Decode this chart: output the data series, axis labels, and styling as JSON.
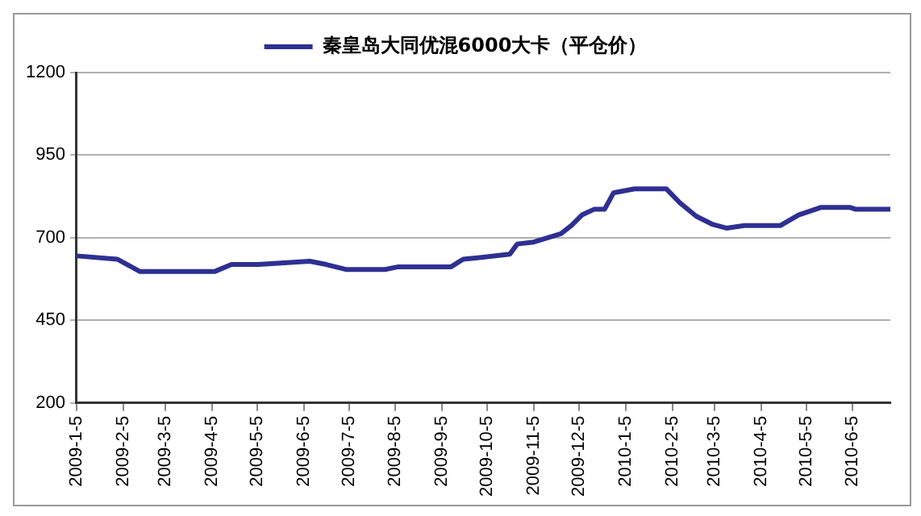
{
  "chart_data": {
    "type": "line",
    "x": [
      "2009-01-05",
      "2009-02-01",
      "2009-02-16",
      "2009-04-07",
      "2009-04-18",
      "2009-05-06",
      "2009-06-09",
      "2009-06-20",
      "2009-07-03",
      "2009-07-29",
      "2009-08-07",
      "2009-09-11",
      "2009-09-19",
      "2009-09-30",
      "2009-10-20",
      "2009-10-25",
      "2009-11-05",
      "2009-11-23",
      "2009-11-30",
      "2009-12-07",
      "2009-12-15",
      "2009-12-22",
      "2009-12-28",
      "2010-01-11",
      "2010-02-01",
      "2010-02-10",
      "2010-02-21",
      "2010-03-04",
      "2010-03-13",
      "2010-03-25",
      "2010-04-18",
      "2010-04-30",
      "2010-05-15",
      "2010-06-03",
      "2010-06-07",
      "2010-06-30"
    ],
    "series": [
      {
        "name": "秦皇岛大同优混6000大卡（平仓价）",
        "color": "#2e3092",
        "values": [
          645,
          635,
          598,
          598,
          619,
          619,
          629,
          619,
          604,
          604,
          612,
          612,
          635,
          640,
          650,
          681,
          687,
          712,
          737,
          769,
          786,
          786,
          836,
          848,
          848,
          806,
          765,
          740,
          729,
          737,
          737,
          769,
          792,
          792,
          786,
          786
        ]
      }
    ],
    "xlim": [
      "2009-01-05",
      "2010-06-30"
    ],
    "xticks": [
      {
        "value": "2009-01-05",
        "label": "2009-1-5"
      },
      {
        "value": "2009-02-05",
        "label": "2009-2-5"
      },
      {
        "value": "2009-03-05",
        "label": "2009-3-5"
      },
      {
        "value": "2009-04-05",
        "label": "2009-4-5"
      },
      {
        "value": "2009-05-05",
        "label": "2009-5-5"
      },
      {
        "value": "2009-06-05",
        "label": "2009-6-5"
      },
      {
        "value": "2009-07-05",
        "label": "2009-7-5"
      },
      {
        "value": "2009-08-05",
        "label": "2009-8-5"
      },
      {
        "value": "2009-09-05",
        "label": "2009-9-5"
      },
      {
        "value": "2009-10-05",
        "label": "2009-10-5"
      },
      {
        "value": "2009-11-05",
        "label": "2009-11-5"
      },
      {
        "value": "2009-12-05",
        "label": "2009-12-5"
      },
      {
        "value": "2010-01-05",
        "label": "2010-1-5"
      },
      {
        "value": "2010-02-05",
        "label": "2010-2-5"
      },
      {
        "value": "2010-03-05",
        "label": "2010-3-5"
      },
      {
        "value": "2010-04-05",
        "label": "2010-4-5"
      },
      {
        "value": "2010-05-05",
        "label": "2010-5-5"
      },
      {
        "value": "2010-06-05",
        "label": "2010-6-5"
      }
    ],
    "ylim": [
      200,
      1200
    ],
    "yticks": [
      200,
      450,
      700,
      950,
      1200
    ],
    "grid": "y",
    "legend": "top",
    "marker": "none",
    "line_style": "solid"
  }
}
